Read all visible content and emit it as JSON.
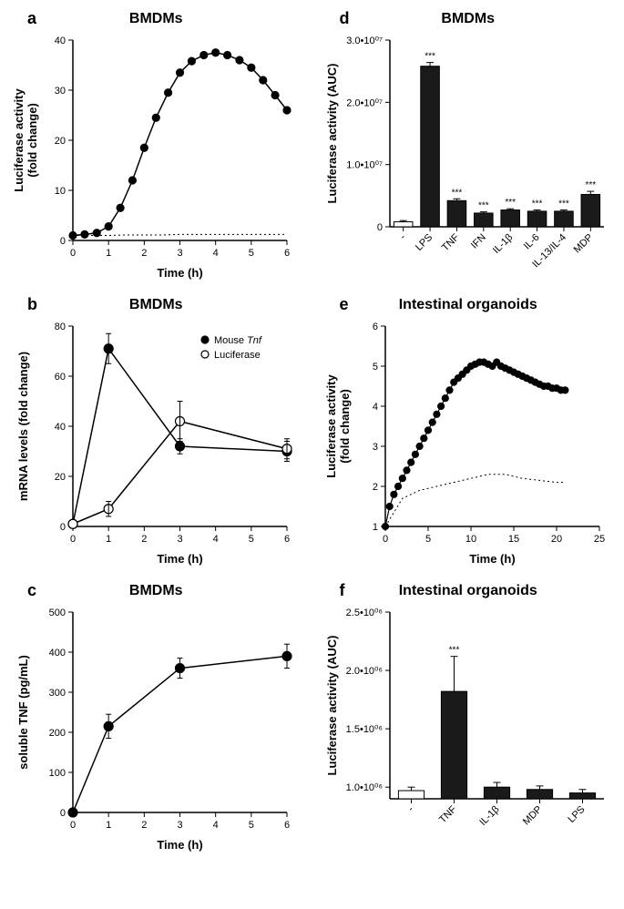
{
  "panel_a": {
    "label": "a",
    "title": "BMDMs",
    "type": "line",
    "xlabel": "Time (h)",
    "ylabel": "Luciferase activity\n(fold change)",
    "xlim": [
      0,
      6
    ],
    "ylim": [
      0,
      40
    ],
    "xticks": [
      0,
      1,
      2,
      3,
      4,
      5,
      6
    ],
    "yticks": [
      0,
      10,
      20,
      30,
      40
    ],
    "series_main": {
      "x": [
        0,
        0.33,
        0.67,
        1.0,
        1.33,
        1.67,
        2.0,
        2.33,
        2.67,
        3.0,
        3.33,
        3.67,
        4.0,
        4.33,
        4.67,
        5.0,
        5.33,
        5.67,
        6.0
      ],
      "y": [
        1.0,
        1.2,
        1.5,
        2.8,
        6.5,
        12.0,
        18.5,
        24.5,
        29.5,
        33.5,
        35.8,
        37.0,
        37.5,
        37.0,
        36.0,
        34.5,
        32.0,
        29.0,
        26.0
      ],
      "color": "#000000",
      "marker": "circle-filled",
      "marker_size": 4,
      "line_width": 1.5
    },
    "series_dotted": {
      "x": [
        0,
        0.5,
        1.0,
        1.5,
        2.0,
        2.5,
        3.0,
        3.5,
        4.0,
        4.5,
        5.0,
        5.5,
        6.0
      ],
      "y": [
        1.0,
        1.0,
        1.0,
        1.1,
        1.1,
        1.1,
        1.2,
        1.2,
        1.2,
        1.2,
        1.2,
        1.2,
        1.2
      ],
      "color": "#000000",
      "line_style": "dotted",
      "line_width": 1
    },
    "background_color": "#ffffff",
    "axis_color": "#000000",
    "label_fontsize": 13,
    "tick_fontsize": 11
  },
  "panel_b": {
    "label": "b",
    "title": "BMDMs",
    "type": "line",
    "xlabel": "Time (h)",
    "ylabel": "mRNA levels (fold change)",
    "xlim": [
      0,
      6
    ],
    "ylim": [
      0,
      80
    ],
    "xticks": [
      0,
      1,
      2,
      3,
      4,
      5,
      6
    ],
    "yticks": [
      0,
      20,
      40,
      60,
      80
    ],
    "legend": [
      {
        "label": "Mouse Tnf",
        "marker": "circle-filled"
      },
      {
        "label": "Luciferase",
        "marker": "circle-open"
      }
    ],
    "series_tnf": {
      "x": [
        0,
        1,
        3,
        6
      ],
      "y": [
        1,
        71,
        32,
        30
      ],
      "err": [
        0,
        6,
        3,
        4
      ],
      "color": "#000000",
      "marker": "circle-filled",
      "marker_size": 5,
      "line_width": 1.5
    },
    "series_luc": {
      "x": [
        0,
        1,
        3,
        6
      ],
      "y": [
        1,
        7,
        42,
        31
      ],
      "err": [
        0,
        3,
        8,
        4
      ],
      "color": "#000000",
      "marker": "circle-open",
      "marker_size": 5,
      "line_width": 1.5
    },
    "background_color": "#ffffff",
    "axis_color": "#000000",
    "label_fontsize": 13,
    "tick_fontsize": 11
  },
  "panel_c": {
    "label": "c",
    "title": "BMDMs",
    "type": "line",
    "xlabel": "Time (h)",
    "ylabel": "soluble TNF (pg/mL)",
    "xlim": [
      0,
      6
    ],
    "ylim": [
      0,
      500
    ],
    "xticks": [
      0,
      1,
      2,
      3,
      4,
      5,
      6
    ],
    "yticks": [
      0,
      100,
      200,
      300,
      400,
      500
    ],
    "series": {
      "x": [
        0,
        1,
        3,
        6
      ],
      "y": [
        0,
        215,
        360,
        390
      ],
      "err": [
        0,
        30,
        25,
        30
      ],
      "color": "#000000",
      "marker": "circle-filled",
      "marker_size": 5,
      "line_width": 1.5
    },
    "background_color": "#ffffff",
    "axis_color": "#000000",
    "label_fontsize": 13,
    "tick_fontsize": 11
  },
  "panel_d": {
    "label": "d",
    "title": "BMDMs",
    "type": "bar",
    "ylabel": "Luciferase activity (AUC)",
    "categories": [
      "-",
      "LPS",
      "TNF",
      "IFN",
      "IL-1β",
      "IL-6",
      "IL-13/IL-4",
      "MDP"
    ],
    "values": [
      800000.0,
      25800000.0,
      4200000.0,
      2200000.0,
      2700000.0,
      2500000.0,
      2500000.0,
      5200000.0
    ],
    "errors": [
      200000.0,
      600000.0,
      300000.0,
      200000.0,
      200000.0,
      200000.0,
      200000.0,
      500000.0
    ],
    "significance": [
      "",
      "***",
      "***",
      "***",
      "***",
      "***",
      "***",
      "***"
    ],
    "bar_colors": [
      "#ffffff",
      "#1a1a1a",
      "#1a1a1a",
      "#1a1a1a",
      "#1a1a1a",
      "#1a1a1a",
      "#1a1a1a",
      "#1a1a1a"
    ],
    "bar_border": "#000000",
    "ylim": [
      0,
      30000000.0
    ],
    "yticks": [
      0,
      10000000.0,
      20000000.0,
      30000000.0
    ],
    "ytick_labels": [
      "0",
      "1.0•10⁰⁷",
      "2.0•10⁰⁷",
      "3.0•10⁰⁷"
    ],
    "background_color": "#ffffff",
    "axis_color": "#000000",
    "label_fontsize": 13,
    "tick_fontsize": 11,
    "bar_width": 0.7
  },
  "panel_e": {
    "label": "e",
    "title": "Intestinal organoids",
    "type": "line",
    "xlabel": "Time (h)",
    "ylabel": "Luciferase activity\n(fold change)",
    "xlim": [
      0,
      25
    ],
    "ylim": [
      1,
      6
    ],
    "xticks": [
      0,
      5,
      10,
      15,
      20,
      25
    ],
    "yticks": [
      1,
      2,
      3,
      4,
      5,
      6
    ],
    "series_main": {
      "x": [
        0,
        0.5,
        1,
        1.5,
        2,
        2.5,
        3,
        3.5,
        4,
        4.5,
        5,
        5.5,
        6,
        6.5,
        7,
        7.5,
        8,
        8.5,
        9,
        9.5,
        10,
        10.5,
        11,
        11.5,
        12,
        12.5,
        13,
        13.5,
        14,
        14.5,
        15,
        15.5,
        16,
        16.5,
        17,
        17.5,
        18,
        18.5,
        19,
        19.5,
        20,
        20.5,
        21
      ],
      "y": [
        1.0,
        1.5,
        1.8,
        2.0,
        2.2,
        2.4,
        2.6,
        2.8,
        3.0,
        3.2,
        3.4,
        3.6,
        3.8,
        4.0,
        4.2,
        4.4,
        4.6,
        4.7,
        4.8,
        4.9,
        5.0,
        5.05,
        5.1,
        5.1,
        5.05,
        5.0,
        5.1,
        5.0,
        4.95,
        4.9,
        4.85,
        4.8,
        4.75,
        4.7,
        4.65,
        4.6,
        4.55,
        4.5,
        4.5,
        4.45,
        4.45,
        4.4,
        4.4
      ],
      "color": "#000000",
      "marker": "circle-filled",
      "marker_size": 3.5,
      "line_width": 1.2
    },
    "series_dotted": {
      "x": [
        0,
        2,
        4,
        6,
        8,
        10,
        12,
        14,
        16,
        18,
        20,
        21
      ],
      "y": [
        1.0,
        1.7,
        1.9,
        2.0,
        2.1,
        2.2,
        2.3,
        2.3,
        2.2,
        2.15,
        2.1,
        2.1
      ],
      "color": "#000000",
      "line_style": "dotted",
      "line_width": 1
    },
    "background_color": "#ffffff",
    "axis_color": "#000000",
    "label_fontsize": 13,
    "tick_fontsize": 11
  },
  "panel_f": {
    "label": "f",
    "title": "Intestinal organoids",
    "type": "bar",
    "ylabel": "Luciferase activity (AUC)",
    "categories": [
      "-",
      "TNF",
      "IL-1β",
      "MDP",
      "LPS"
    ],
    "values": [
      970000.0,
      1820000.0,
      1000000.0,
      980000.0,
      950000.0
    ],
    "errors": [
      30000.0,
      300000.0,
      40000.0,
      30000.0,
      30000.0
    ],
    "significance": [
      "",
      "***",
      "",
      "",
      ""
    ],
    "bar_colors": [
      "#ffffff",
      "#1a1a1a",
      "#1a1a1a",
      "#1a1a1a",
      "#1a1a1a"
    ],
    "bar_border": "#000000",
    "ylim": [
      900000.0,
      2500000.0
    ],
    "yticks": [
      1000000.0,
      1500000.0,
      2000000.0,
      2500000.0
    ],
    "ytick_labels": [
      "1.0•10⁰⁶",
      "1.5•10⁰⁶",
      "2.0•10⁰⁶",
      "2.5•10⁰⁶"
    ],
    "background_color": "#ffffff",
    "axis_color": "#000000",
    "label_fontsize": 13,
    "tick_fontsize": 11,
    "bar_width": 0.6
  }
}
